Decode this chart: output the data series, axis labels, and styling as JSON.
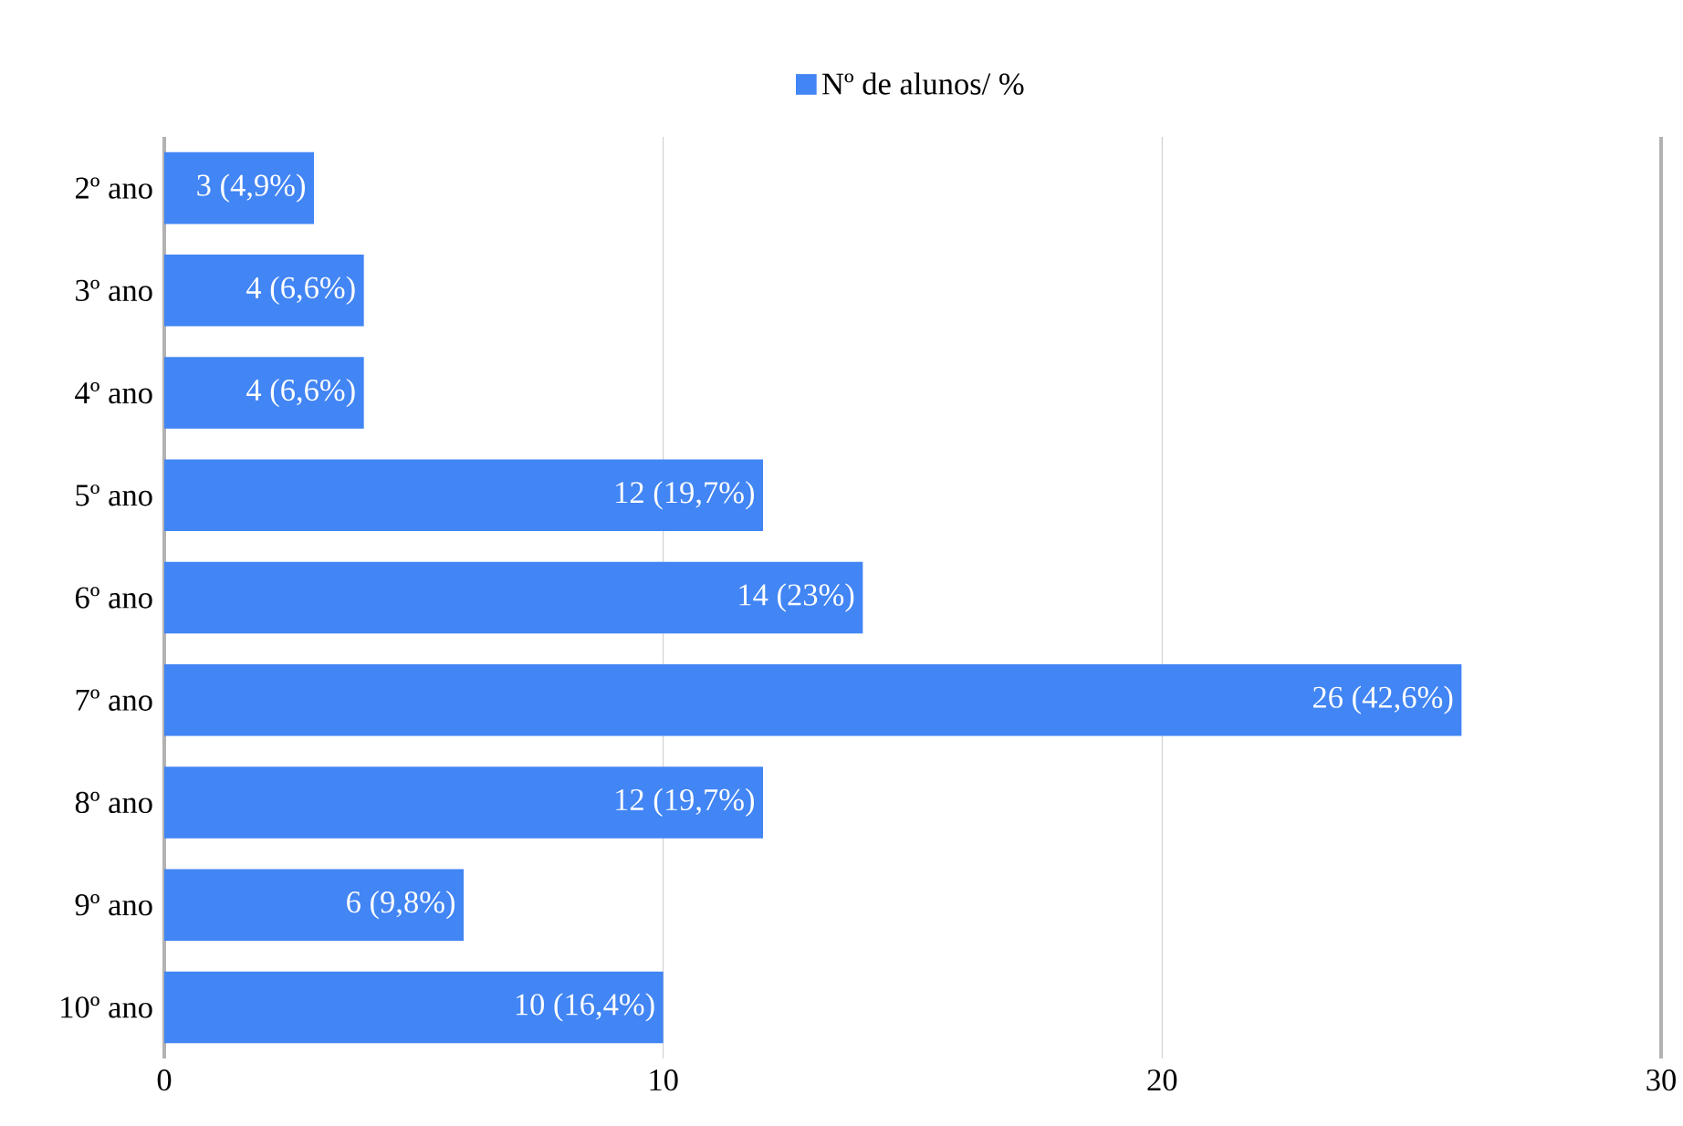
{
  "chart_data": {
    "type": "bar",
    "orientation": "horizontal",
    "categories": [
      "2º ano",
      "3º ano",
      "4º ano",
      "5º ano",
      "6º ano",
      "7º ano",
      "8º ano",
      "9º ano",
      "10º ano"
    ],
    "series": [
      {
        "name": "Nº de alunos/ %",
        "color": "#4285f4",
        "values": [
          3,
          4,
          4,
          12,
          14,
          26,
          12,
          6,
          10
        ],
        "value_labels": [
          "3 (4,9%)",
          "4 (6,6%)",
          "4 (6,6%)",
          "12 (19,7%)",
          "14 (23%)",
          "26 (42,6%)",
          "12 (19,7%)",
          "6 (9,8%)",
          "10 (16,4%)"
        ]
      }
    ],
    "xlim": [
      0,
      30
    ],
    "xticks": [
      0,
      10,
      20,
      30
    ],
    "grid": "x",
    "legend": "top"
  }
}
